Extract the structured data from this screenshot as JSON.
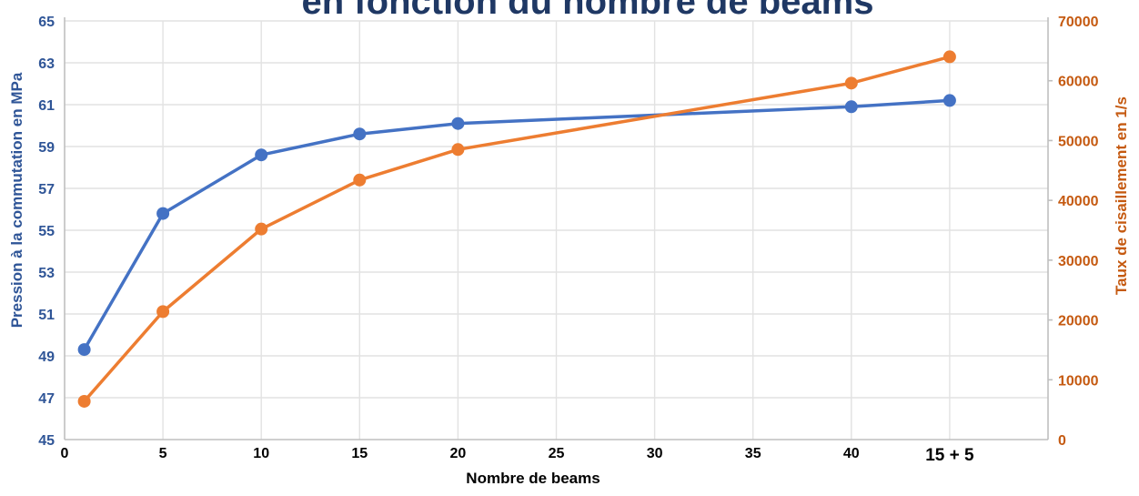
{
  "chart_data": {
    "type": "line",
    "title": "en fonction du nombre de beams",
    "xlabel": "Nombre de beams",
    "ylabel_left": "Pression à la commutation en MPa",
    "ylabel_right": "Taux de cisaillement en 1/s",
    "x_tick_labels": [
      "0",
      "5",
      "10",
      "15",
      "20",
      "25",
      "30",
      "35",
      "40",
      "15 + 5"
    ],
    "x_tick_positions": [
      0,
      5,
      10,
      15,
      20,
      25,
      30,
      35,
      40,
      45
    ],
    "xlim": [
      0,
      50
    ],
    "ylim_left": [
      45,
      65
    ],
    "ytick_step_left": 2,
    "ylim_right": [
      0,
      70000
    ],
    "ytick_step_right": 10000,
    "grid": true,
    "legend": "none",
    "series": [
      {
        "name": "Pression à la commutation en MPa",
        "axis": "left",
        "color": "#4472C4",
        "x": [
          1,
          5,
          10,
          15,
          20,
          40,
          45
        ],
        "values": [
          49.3,
          55.8,
          58.6,
          59.6,
          60.1,
          60.9,
          61.2
        ]
      },
      {
        "name": "Taux de cisaillement en 1/s",
        "axis": "right",
        "color": "#ED7D31",
        "x": [
          1,
          5,
          10,
          15,
          20,
          40,
          45
        ],
        "values": [
          6400,
          21400,
          35200,
          43400,
          48500,
          59600,
          64000
        ]
      }
    ]
  },
  "colors": {
    "series_blue": "#4472C4",
    "series_orange": "#ED7D31",
    "left_tick_label": "#2F5597",
    "right_tick_label": "#C55A11",
    "x_tick_label": "#000000",
    "title_navy": "#1F3864",
    "gridline": "#E2E2E2",
    "axis_line": "#BFBFBF",
    "background": "#FFFFFF"
  }
}
